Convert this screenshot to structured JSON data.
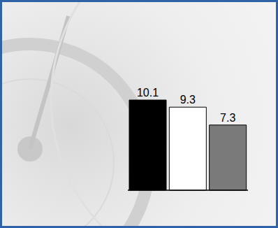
{
  "chart_data": {
    "type": "bar",
    "categories": [
      null,
      null,
      null
    ],
    "values": [
      10.1,
      9.3,
      7.3
    ],
    "colors": [
      "#000000",
      "#ffffff",
      "#7a7a7a"
    ],
    "data_labels": true,
    "tick_labels": false
  }
}
